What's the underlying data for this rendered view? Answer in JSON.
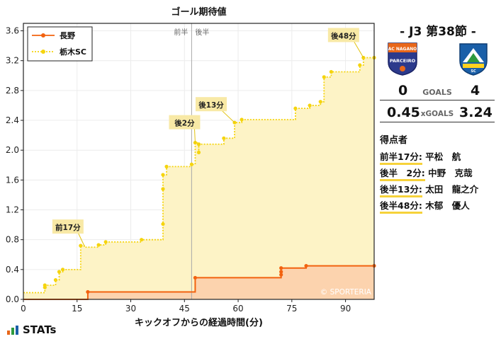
{
  "chart_data": {
    "type": "line",
    "title": "ゴール期待値",
    "xlabel": "キックオフからの経過時間(分)",
    "ylabel": "",
    "xlim": [
      0,
      98
    ],
    "ylim": [
      0,
      3.7
    ],
    "x_ticks": [
      "0",
      "15",
      "30",
      "45",
      "60",
      "75",
      "90"
    ],
    "y_ticks": [
      "0.0",
      "0.4",
      "0.8",
      "1.2",
      "1.6",
      "2.0",
      "2.4",
      "2.8",
      "3.2",
      "3.6"
    ],
    "x_tick_values": [
      0,
      15,
      30,
      45,
      60,
      75,
      90
    ],
    "y_tick_values": [
      0,
      0.4,
      0.8,
      1.2,
      1.6,
      2.0,
      2.4,
      2.8,
      3.2,
      3.6
    ],
    "halftime": 47,
    "halftime_labels": [
      "前半",
      "後半"
    ],
    "watermark": "© SPORTERIA",
    "legend_position": "top-left",
    "series": [
      {
        "name": "長野",
        "color": "#f2620f",
        "fill": "#fcd3ae",
        "style": "solid",
        "points": [
          [
            0,
            0
          ],
          [
            18,
            0
          ],
          [
            18,
            0.1
          ],
          [
            48,
            0.1
          ],
          [
            48,
            0.29
          ],
          [
            72,
            0.29
          ],
          [
            72,
            0.33
          ],
          [
            72,
            0.37
          ],
          [
            72,
            0.42
          ],
          [
            79,
            0.42
          ],
          [
            79,
            0.45
          ],
          [
            98,
            0.45
          ]
        ]
      },
      {
        "name": "栃木SC",
        "color": "#f5d40e",
        "fill": "#fdf3c6",
        "style": "dotted",
        "points": [
          [
            0,
            0.09
          ],
          [
            6,
            0.09
          ],
          [
            6,
            0.16
          ],
          [
            6,
            0.19
          ],
          [
            9,
            0.19
          ],
          [
            9,
            0.26
          ],
          [
            10,
            0.26
          ],
          [
            10,
            0.37
          ],
          [
            11,
            0.37
          ],
          [
            11,
            0.4
          ],
          [
            16,
            0.4
          ],
          [
            16,
            0.72
          ],
          [
            17,
            0.72
          ],
          [
            17,
            0.7
          ],
          [
            21,
            0.7
          ],
          [
            21,
            0.73
          ],
          [
            23,
            0.73
          ],
          [
            23,
            0.77
          ],
          [
            33,
            0.77
          ],
          [
            33,
            0.8
          ],
          [
            39,
            0.8
          ],
          [
            39,
            1.01
          ],
          [
            39,
            1.48
          ],
          [
            39,
            1.67
          ],
          [
            40,
            1.67
          ],
          [
            40,
            1.78
          ],
          [
            47,
            1.78
          ],
          [
            47,
            1.81
          ],
          [
            48,
            1.81
          ],
          [
            48,
            2.1
          ],
          [
            49,
            2.1
          ],
          [
            49,
            1.97
          ],
          [
            49,
            2.08
          ],
          [
            56,
            2.08
          ],
          [
            56,
            2.16
          ],
          [
            59,
            2.16
          ],
          [
            59,
            2.37
          ],
          [
            61,
            2.37
          ],
          [
            61,
            2.41
          ],
          [
            76,
            2.41
          ],
          [
            76,
            2.56
          ],
          [
            80,
            2.56
          ],
          [
            80,
            2.6
          ],
          [
            83,
            2.6
          ],
          [
            83,
            2.65
          ],
          [
            84,
            2.65
          ],
          [
            84,
            2.98
          ],
          [
            86,
            2.98
          ],
          [
            86,
            3.05
          ],
          [
            94,
            3.05
          ],
          [
            94,
            3.14
          ],
          [
            95,
            3.14
          ],
          [
            95,
            3.24
          ],
          [
            98,
            3.24
          ]
        ],
        "markers": [
          [
            6,
            0.16
          ],
          [
            6,
            0.19
          ],
          [
            9,
            0.26
          ],
          [
            10,
            0.37
          ],
          [
            11,
            0.4
          ],
          [
            16,
            0.72
          ],
          [
            21,
            0.73
          ],
          [
            23,
            0.77
          ],
          [
            33,
            0.8
          ],
          [
            39,
            1.01
          ],
          [
            39,
            1.48
          ],
          [
            39,
            1.67
          ],
          [
            40,
            1.78
          ],
          [
            47,
            1.81
          ],
          [
            48,
            2.1
          ],
          [
            49,
            1.97
          ],
          [
            49,
            2.08
          ],
          [
            56,
            2.16
          ],
          [
            59,
            2.37
          ],
          [
            61,
            2.41
          ],
          [
            76,
            2.56
          ],
          [
            80,
            2.6
          ],
          [
            83,
            2.65
          ],
          [
            84,
            2.98
          ],
          [
            86,
            3.05
          ],
          [
            94,
            3.14
          ],
          [
            95,
            3.24
          ],
          [
            98,
            3.24
          ]
        ]
      }
    ],
    "annotations": [
      {
        "text": "前17分",
        "x": 17,
        "y": 0.72
      },
      {
        "text": "後2分",
        "x": 48,
        "y": 2.1
      },
      {
        "text": "後13分",
        "x": 59,
        "y": 2.37
      },
      {
        "text": "後48分",
        "x": 95,
        "y": 3.24
      }
    ]
  },
  "match": {
    "title": "- J3 第38節 -",
    "home_score": "0",
    "away_score": "4",
    "goals_label": "GOALS",
    "home_xg": "0.45",
    "away_xg": "3.24",
    "xg_label": "xGOALS",
    "home_crest": "parceiro-crest-icon",
    "away_crest": "tochigi-sc-crest-icon"
  },
  "scorers": {
    "title": "得点者",
    "items": [
      {
        "time": "前半17分:",
        "name": "平松　航"
      },
      {
        "time": "後半　2分:",
        "name": "中野　克哉"
      },
      {
        "time": "後半13分:",
        "name": "太田　龍之介"
      },
      {
        "time": "後半48分:",
        "name": "木郁　優人"
      }
    ]
  },
  "brand": {
    "name": "STATs"
  },
  "colors": {
    "accent": "#f6d23a",
    "home": "#f2620f",
    "away": "#f5d40e"
  }
}
